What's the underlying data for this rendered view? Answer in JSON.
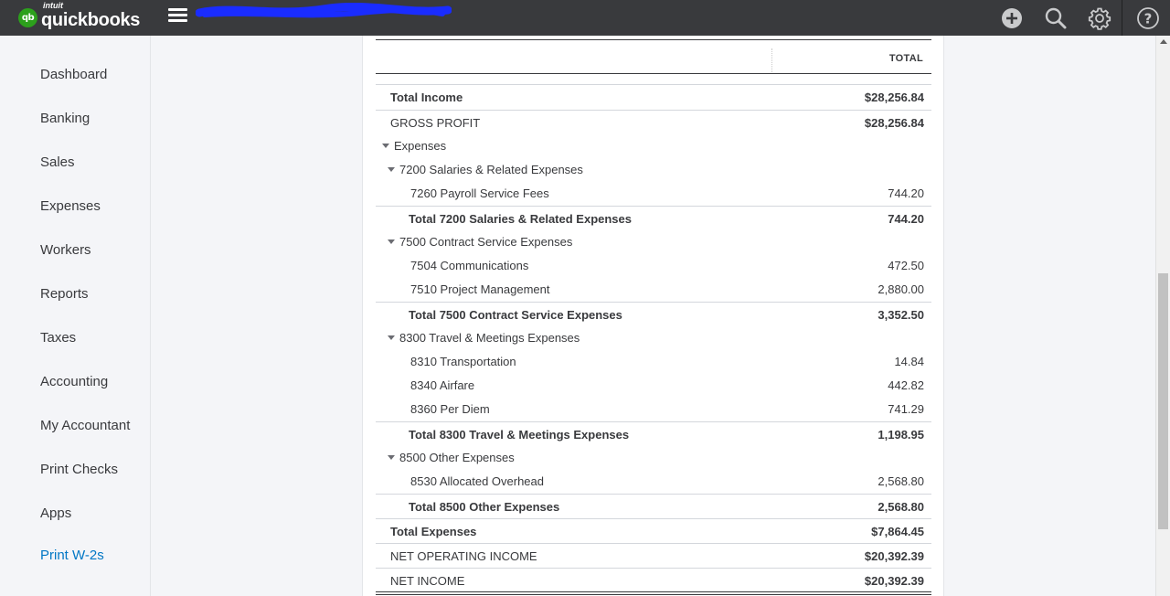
{
  "app": {
    "logo_intuit": "intuit",
    "logo_name": "quickbooks",
    "logo_mark": "qb"
  },
  "topbar": {
    "icons": [
      "plus-circle-icon",
      "search-icon",
      "gear-icon",
      "help-icon"
    ]
  },
  "sidebar": {
    "items": [
      {
        "label": "Dashboard"
      },
      {
        "label": "Banking"
      },
      {
        "label": "Sales"
      },
      {
        "label": "Expenses"
      },
      {
        "label": "Workers"
      },
      {
        "label": "Reports"
      },
      {
        "label": "Taxes"
      },
      {
        "label": "Accounting"
      },
      {
        "label": "My Accountant"
      },
      {
        "label": "Print Checks"
      },
      {
        "label": "Apps"
      },
      {
        "label": "Print W-2s"
      }
    ]
  },
  "report": {
    "column_header": "TOTAL",
    "rows": [
      {
        "label": "Total Income",
        "amount": "$28,256.84"
      },
      {
        "label": "GROSS PROFIT",
        "amount": "$28,256.84"
      },
      {
        "label": "Expenses",
        "amount": ""
      },
      {
        "label": "7200 Salaries & Related Expenses",
        "amount": ""
      },
      {
        "label": "7260 Payroll Service Fees",
        "amount": "744.20"
      },
      {
        "label": "Total 7200 Salaries & Related Expenses",
        "amount": "744.20"
      },
      {
        "label": "7500 Contract Service Expenses",
        "amount": ""
      },
      {
        "label": "7504 Communications",
        "amount": "472.50"
      },
      {
        "label": "7510 Project Management",
        "amount": "2,880.00"
      },
      {
        "label": "Total 7500 Contract Service Expenses",
        "amount": "3,352.50"
      },
      {
        "label": "8300 Travel & Meetings Expenses",
        "amount": ""
      },
      {
        "label": "8310 Transportation",
        "amount": "14.84"
      },
      {
        "label": "8340 Airfare",
        "amount": "442.82"
      },
      {
        "label": "8360 Per Diem",
        "amount": "741.29"
      },
      {
        "label": "Total 8300 Travel & Meetings Expenses",
        "amount": "1,198.95"
      },
      {
        "label": "8500 Other Expenses",
        "amount": ""
      },
      {
        "label": "8530 Allocated Overhead",
        "amount": "2,568.80"
      },
      {
        "label": "Total 8500 Other Expenses",
        "amount": "2,568.80"
      },
      {
        "label": "Total Expenses",
        "amount": "$7,864.45"
      },
      {
        "label": "NET OPERATING INCOME",
        "amount": "$20,392.39"
      },
      {
        "label": "NET INCOME",
        "amount": "$20,392.39"
      }
    ]
  },
  "colors": {
    "topbar": "#393a3d",
    "brand_green": "#2ca01c",
    "link_blue": "#0077c5",
    "redaction_blue": "#1a2cff"
  }
}
